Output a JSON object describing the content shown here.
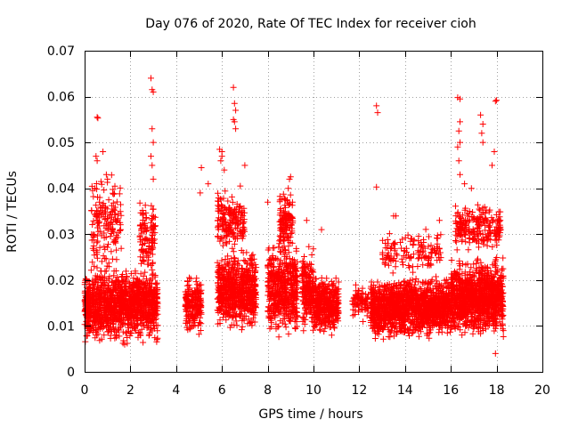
{
  "chart_data": {
    "type": "scatter",
    "title": "Day 076 of 2020, Rate Of TEC Index for receiver cioh",
    "xlabel": "GPS time / hours",
    "ylabel": "ROTI / TECUs",
    "xlim": [
      0,
      20
    ],
    "ylim": [
      0,
      0.07
    ],
    "grid": true,
    "marker": "plus",
    "color": "#ff0000",
    "xticks": [
      {
        "value": 0,
        "label": "0"
      },
      {
        "value": 2,
        "label": "2"
      },
      {
        "value": 4,
        "label": "4"
      },
      {
        "value": 6,
        "label": "6"
      },
      {
        "value": 8,
        "label": "8"
      },
      {
        "value": 10,
        "label": "10"
      },
      {
        "value": 12,
        "label": "12"
      },
      {
        "value": 14,
        "label": "14"
      },
      {
        "value": 16,
        "label": "16"
      },
      {
        "value": 18,
        "label": "18"
      },
      {
        "value": 20,
        "label": "20"
      }
    ],
    "yticks": [
      {
        "value": 0,
        "label": "0"
      },
      {
        "value": 0.01,
        "label": "0.01"
      },
      {
        "value": 0.02,
        "label": "0.02"
      },
      {
        "value": 0.03,
        "label": "0.03"
      },
      {
        "value": 0.04,
        "label": "0.04"
      },
      {
        "value": 0.05,
        "label": "0.05"
      },
      {
        "value": 0.06,
        "label": "0.06"
      },
      {
        "value": 0.07,
        "label": "0.07"
      }
    ],
    "clusters": [
      {
        "x_start": 0.0,
        "x_end": 3.2,
        "y_low": 0.005,
        "y_high": 0.024,
        "count": 1300
      },
      {
        "x_start": 0.3,
        "x_end": 1.6,
        "y_low": 0.02,
        "y_high": 0.045,
        "count": 160
      },
      {
        "x_start": 2.4,
        "x_end": 3.1,
        "y_low": 0.02,
        "y_high": 0.04,
        "count": 110
      },
      {
        "x_start": 4.4,
        "x_end": 5.1,
        "y_low": 0.007,
        "y_high": 0.022,
        "count": 200
      },
      {
        "x_start": 5.8,
        "x_end": 7.5,
        "y_low": 0.007,
        "y_high": 0.028,
        "count": 700
      },
      {
        "x_start": 5.8,
        "x_end": 7.0,
        "y_low": 0.025,
        "y_high": 0.04,
        "count": 180
      },
      {
        "x_start": 8.0,
        "x_end": 9.3,
        "y_low": 0.006,
        "y_high": 0.03,
        "count": 500
      },
      {
        "x_start": 8.5,
        "x_end": 9.1,
        "y_low": 0.025,
        "y_high": 0.04,
        "count": 120
      },
      {
        "x_start": 9.5,
        "x_end": 10.0,
        "y_low": 0.008,
        "y_high": 0.028,
        "count": 200
      },
      {
        "x_start": 10.0,
        "x_end": 11.1,
        "y_low": 0.007,
        "y_high": 0.022,
        "count": 380
      },
      {
        "x_start": 11.7,
        "x_end": 12.4,
        "y_low": 0.01,
        "y_high": 0.02,
        "count": 80
      },
      {
        "x_start": 12.5,
        "x_end": 16.0,
        "y_low": 0.006,
        "y_high": 0.022,
        "count": 1400
      },
      {
        "x_start": 13.0,
        "x_end": 15.6,
        "y_low": 0.02,
        "y_high": 0.032,
        "count": 140
      },
      {
        "x_start": 16.0,
        "x_end": 18.3,
        "y_low": 0.006,
        "y_high": 0.026,
        "count": 1100
      },
      {
        "x_start": 16.2,
        "x_end": 18.2,
        "y_low": 0.025,
        "y_high": 0.038,
        "count": 220
      }
    ],
    "outliers": [
      {
        "x": 0.5,
        "y": 0.047
      },
      {
        "x": 0.55,
        "y": 0.046
      },
      {
        "x": 0.45,
        "y": 0.04
      },
      {
        "x": 0.55,
        "y": 0.0555
      },
      {
        "x": 0.58,
        "y": 0.0553
      },
      {
        "x": 0.8,
        "y": 0.048
      },
      {
        "x": 0.95,
        "y": 0.043
      },
      {
        "x": 1.0,
        "y": 0.042
      },
      {
        "x": 2.9,
        "y": 0.064
      },
      {
        "x": 2.95,
        "y": 0.0615
      },
      {
        "x": 3.0,
        "y": 0.061
      },
      {
        "x": 2.95,
        "y": 0.053
      },
      {
        "x": 3.0,
        "y": 0.05
      },
      {
        "x": 2.9,
        "y": 0.047
      },
      {
        "x": 2.95,
        "y": 0.045
      },
      {
        "x": 3.0,
        "y": 0.042
      },
      {
        "x": 5.1,
        "y": 0.0445
      },
      {
        "x": 5.05,
        "y": 0.039
      },
      {
        "x": 5.4,
        "y": 0.041
      },
      {
        "x": 5.9,
        "y": 0.0485
      },
      {
        "x": 6.0,
        "y": 0.048
      },
      {
        "x": 6.0,
        "y": 0.047
      },
      {
        "x": 5.95,
        "y": 0.046
      },
      {
        "x": 6.1,
        "y": 0.044
      },
      {
        "x": 6.5,
        "y": 0.062
      },
      {
        "x": 6.55,
        "y": 0.0585
      },
      {
        "x": 6.6,
        "y": 0.057
      },
      {
        "x": 6.5,
        "y": 0.055
      },
      {
        "x": 6.6,
        "y": 0.053
      },
      {
        "x": 6.55,
        "y": 0.0545
      },
      {
        "x": 7.0,
        "y": 0.045
      },
      {
        "x": 6.8,
        "y": 0.0405
      },
      {
        "x": 8.0,
        "y": 0.037
      },
      {
        "x": 8.95,
        "y": 0.042
      },
      {
        "x": 9.0,
        "y": 0.0425
      },
      {
        "x": 8.9,
        "y": 0.04
      },
      {
        "x": 9.7,
        "y": 0.033
      },
      {
        "x": 10.35,
        "y": 0.031
      },
      {
        "x": 12.75,
        "y": 0.058
      },
      {
        "x": 12.8,
        "y": 0.0565
      },
      {
        "x": 12.75,
        "y": 0.0403
      },
      {
        "x": 13.5,
        "y": 0.034
      },
      {
        "x": 13.6,
        "y": 0.034
      },
      {
        "x": 15.5,
        "y": 0.033
      },
      {
        "x": 16.3,
        "y": 0.0598
      },
      {
        "x": 16.4,
        "y": 0.0595
      },
      {
        "x": 16.4,
        "y": 0.0545
      },
      {
        "x": 16.35,
        "y": 0.0525
      },
      {
        "x": 16.4,
        "y": 0.05
      },
      {
        "x": 16.3,
        "y": 0.049
      },
      {
        "x": 16.35,
        "y": 0.046
      },
      {
        "x": 16.4,
        "y": 0.043
      },
      {
        "x": 16.6,
        "y": 0.041
      },
      {
        "x": 16.9,
        "y": 0.04
      },
      {
        "x": 17.3,
        "y": 0.056
      },
      {
        "x": 17.4,
        "y": 0.054
      },
      {
        "x": 17.35,
        "y": 0.052
      },
      {
        "x": 17.4,
        "y": 0.05
      },
      {
        "x": 17.95,
        "y": 0.059
      },
      {
        "x": 18.0,
        "y": 0.0592
      },
      {
        "x": 17.9,
        "y": 0.048
      },
      {
        "x": 17.8,
        "y": 0.045
      },
      {
        "x": 17.95,
        "y": 0.004
      }
    ]
  }
}
